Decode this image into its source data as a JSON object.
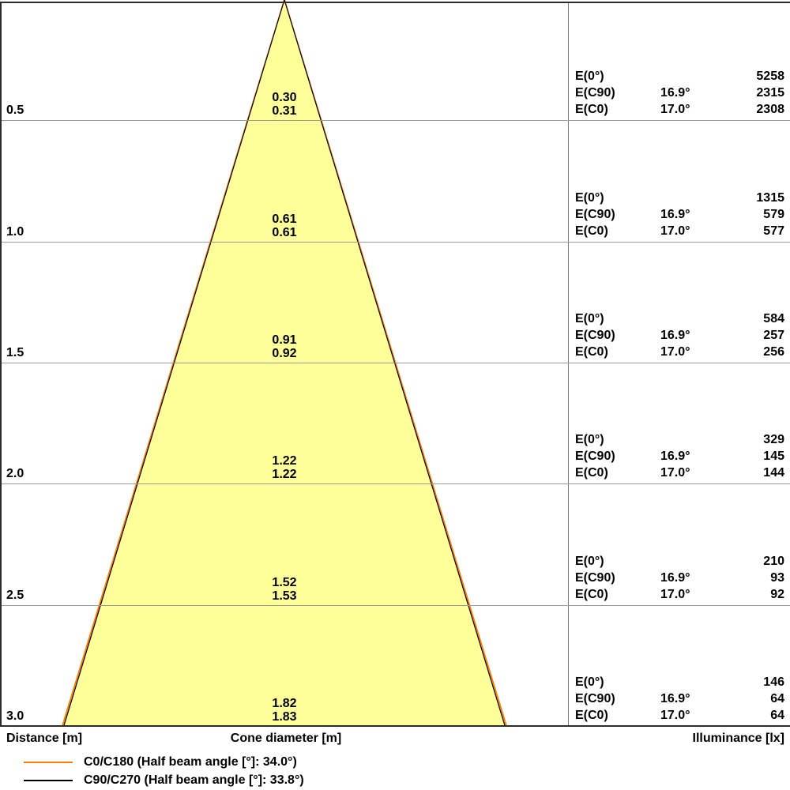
{
  "chart_data": {
    "type": "cone-diagram",
    "description": "Light distribution cone diagram: distance vs cone diameter with illuminance table",
    "axes": {
      "distance_label": "Distance [m]",
      "cone_diameter_label": "Cone diameter [m]",
      "illuminance_label": "Illuminance [lx]"
    },
    "distance_range_m": [
      0,
      3.0
    ],
    "e_labels": [
      "E(0°)",
      "E(C90)",
      "E(C0)"
    ],
    "rows": [
      {
        "distance": "0.5",
        "diameters": [
          "0.30",
          "0.31"
        ],
        "angles": [
          "",
          "16.9°",
          "17.0°"
        ],
        "lx": [
          "5258",
          "2315",
          "2308"
        ]
      },
      {
        "distance": "1.0",
        "diameters": [
          "0.61",
          "0.61"
        ],
        "angles": [
          "",
          "16.9°",
          "17.0°"
        ],
        "lx": [
          "1315",
          "579",
          "577"
        ]
      },
      {
        "distance": "1.5",
        "diameters": [
          "0.91",
          "0.92"
        ],
        "angles": [
          "",
          "16.9°",
          "17.0°"
        ],
        "lx": [
          "584",
          "257",
          "256"
        ]
      },
      {
        "distance": "2.0",
        "diameters": [
          "1.22",
          "1.22"
        ],
        "angles": [
          "",
          "16.9°",
          "17.0°"
        ],
        "lx": [
          "329",
          "145",
          "144"
        ]
      },
      {
        "distance": "2.5",
        "diameters": [
          "1.52",
          "1.53"
        ],
        "angles": [
          "",
          "16.9°",
          "17.0°"
        ],
        "lx": [
          "210",
          "93",
          "92"
        ]
      },
      {
        "distance": "3.0",
        "diameters": [
          "1.82",
          "1.83"
        ],
        "angles": [
          "",
          "16.9°",
          "17.0°"
        ],
        "lx": [
          "146",
          "64",
          "64"
        ]
      }
    ],
    "legend": [
      {
        "color": "#FF8000",
        "label": "C0/C180 (Half beam angle [°]: 34.0°)",
        "beam_angle_deg": 34.0
      },
      {
        "color": "#000000",
        "label": "C90/C270 (Half beam angle [°]: 33.8°)",
        "beam_angle_deg": 33.8
      }
    ],
    "cone_fill": "#FFFF99"
  }
}
